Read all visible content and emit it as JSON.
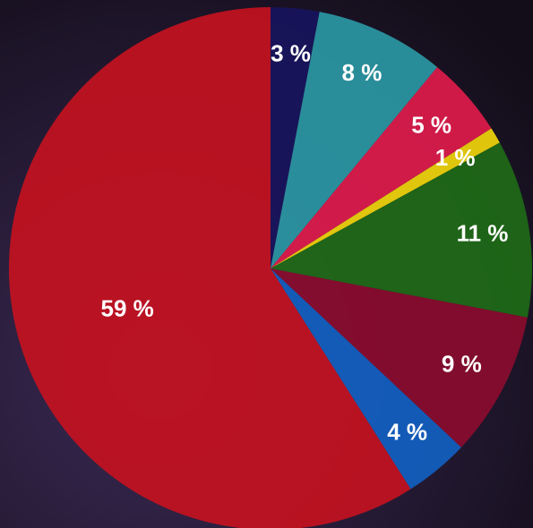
{
  "chart_data": {
    "type": "pie",
    "values": [
      3,
      8,
      5,
      1,
      11,
      9,
      4,
      59
    ],
    "value_labels": [
      "3 %",
      "8 %",
      "5 %",
      "1 %",
      "11 %",
      "9 %",
      "4 %",
      "59 %"
    ],
    "colors": [
      "#17145e",
      "#2b9aa6",
      "#e31c4c",
      "#f5d90a",
      "#1f6d16",
      "#8d0b2e",
      "#1262c4",
      "#c8121f"
    ]
  }
}
